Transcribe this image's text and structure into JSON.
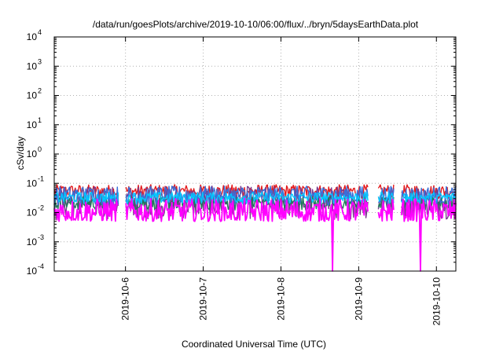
{
  "chart_data": {
    "type": "line",
    "title": "/data/run/goesPlots/archive/2019-10-10/06:00/flux/../bryn/5daysEarthData.plot",
    "xlabel": "Coordinated Universal Time (UTC)",
    "ylabel": "cSv/day",
    "yscale": "log",
    "ylim": [
      0.0001,
      10000
    ],
    "xlim": [
      "2019-10-05 02:00",
      "2019-10-10 06:00"
    ],
    "grid": true,
    "x_ticks": [
      "2019-10-6",
      "2019-10-7",
      "2019-10-8",
      "2019-10-9",
      "2019-10-10"
    ],
    "y_ticks": [
      {
        "base": "10",
        "exp": "4"
      },
      {
        "base": "10",
        "exp": "3"
      },
      {
        "base": "10",
        "exp": "2"
      },
      {
        "base": "10",
        "exp": "1"
      },
      {
        "base": "10",
        "exp": "0"
      },
      {
        "base": "10",
        "exp": "-1"
      },
      {
        "base": "10",
        "exp": "-2"
      },
      {
        "base": "10",
        "exp": "-3"
      },
      {
        "base": "10",
        "exp": "-4"
      }
    ],
    "gaps": [
      [
        "2019-10-05 22:00",
        "2019-10-06 00:00"
      ],
      [
        "2019-10-09 03:00",
        "2019-10-09 06:00"
      ],
      [
        "2019-10-09 11:00",
        "2019-10-09 13:00"
      ]
    ],
    "dropouts": [
      {
        "x": "2019-10-08 16:00",
        "series": "magenta"
      },
      {
        "x": "2019-10-09 19:00",
        "series": "magenta"
      }
    ],
    "series": [
      {
        "color": "#e31a1c",
        "band": [
          0.03,
          0.09
        ]
      },
      {
        "color": "#7a3b8f",
        "band": [
          0.006,
          0.08
        ]
      },
      {
        "color": "#1f7a5a",
        "band": [
          0.012,
          0.035
        ]
      },
      {
        "color": "#3a6fd8",
        "band": [
          0.018,
          0.08
        ]
      },
      {
        "color": "#00c8ff",
        "band": [
          0.02,
          0.05
        ]
      },
      {
        "color": "#ff00ff",
        "band": [
          0.005,
          0.03
        ]
      }
    ]
  }
}
